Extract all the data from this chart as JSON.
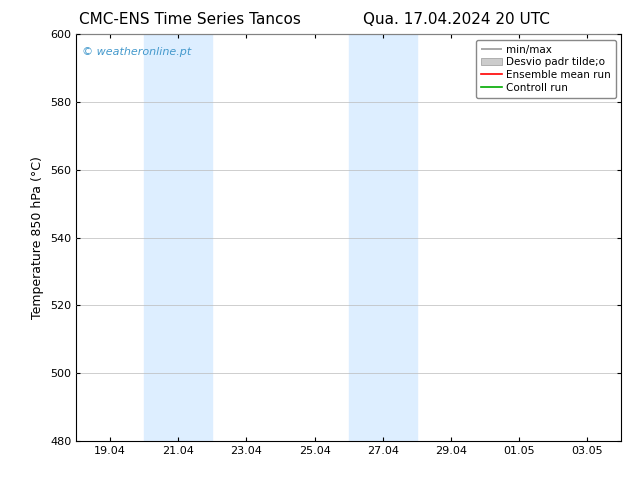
{
  "title_left": "CMC-ENS Time Series Tancos",
  "title_right": "Qua. 17.04.2024 20 UTC",
  "ylabel": "Temperature 850 hPa (°C)",
  "ylim": [
    480,
    600
  ],
  "yticks": [
    480,
    500,
    520,
    540,
    560,
    580,
    600
  ],
  "xtick_labels": [
    "19.04",
    "21.04",
    "23.04",
    "25.04",
    "27.04",
    "29.04",
    "01.05",
    "03.05"
  ],
  "xtick_positions": [
    2,
    6,
    10,
    14,
    18,
    22,
    26,
    30
  ],
  "xlim": [
    0,
    32
  ],
  "shaded_bands": [
    {
      "x_start": 4,
      "x_end": 8
    },
    {
      "x_start": 16,
      "x_end": 20
    }
  ],
  "shade_color": "#ddeeff",
  "watermark_text": "© weatheronline.pt",
  "watermark_color": "#4499cc",
  "legend_labels": [
    "min/max",
    "Desvio padr tilde;o",
    "Ensemble mean run",
    "Controll run"
  ],
  "legend_colors_line": [
    "#999999",
    "#cccccc",
    "#ff0000",
    "#00aa00"
  ],
  "legend_styles": [
    "minmax",
    "band",
    "line",
    "line"
  ],
  "bg_color": "#ffffff",
  "plot_bg_color": "#ffffff",
  "grid_color": "#bbbbbb",
  "title_fontsize": 11,
  "tick_fontsize": 8,
  "label_fontsize": 9,
  "legend_fontsize": 7.5
}
